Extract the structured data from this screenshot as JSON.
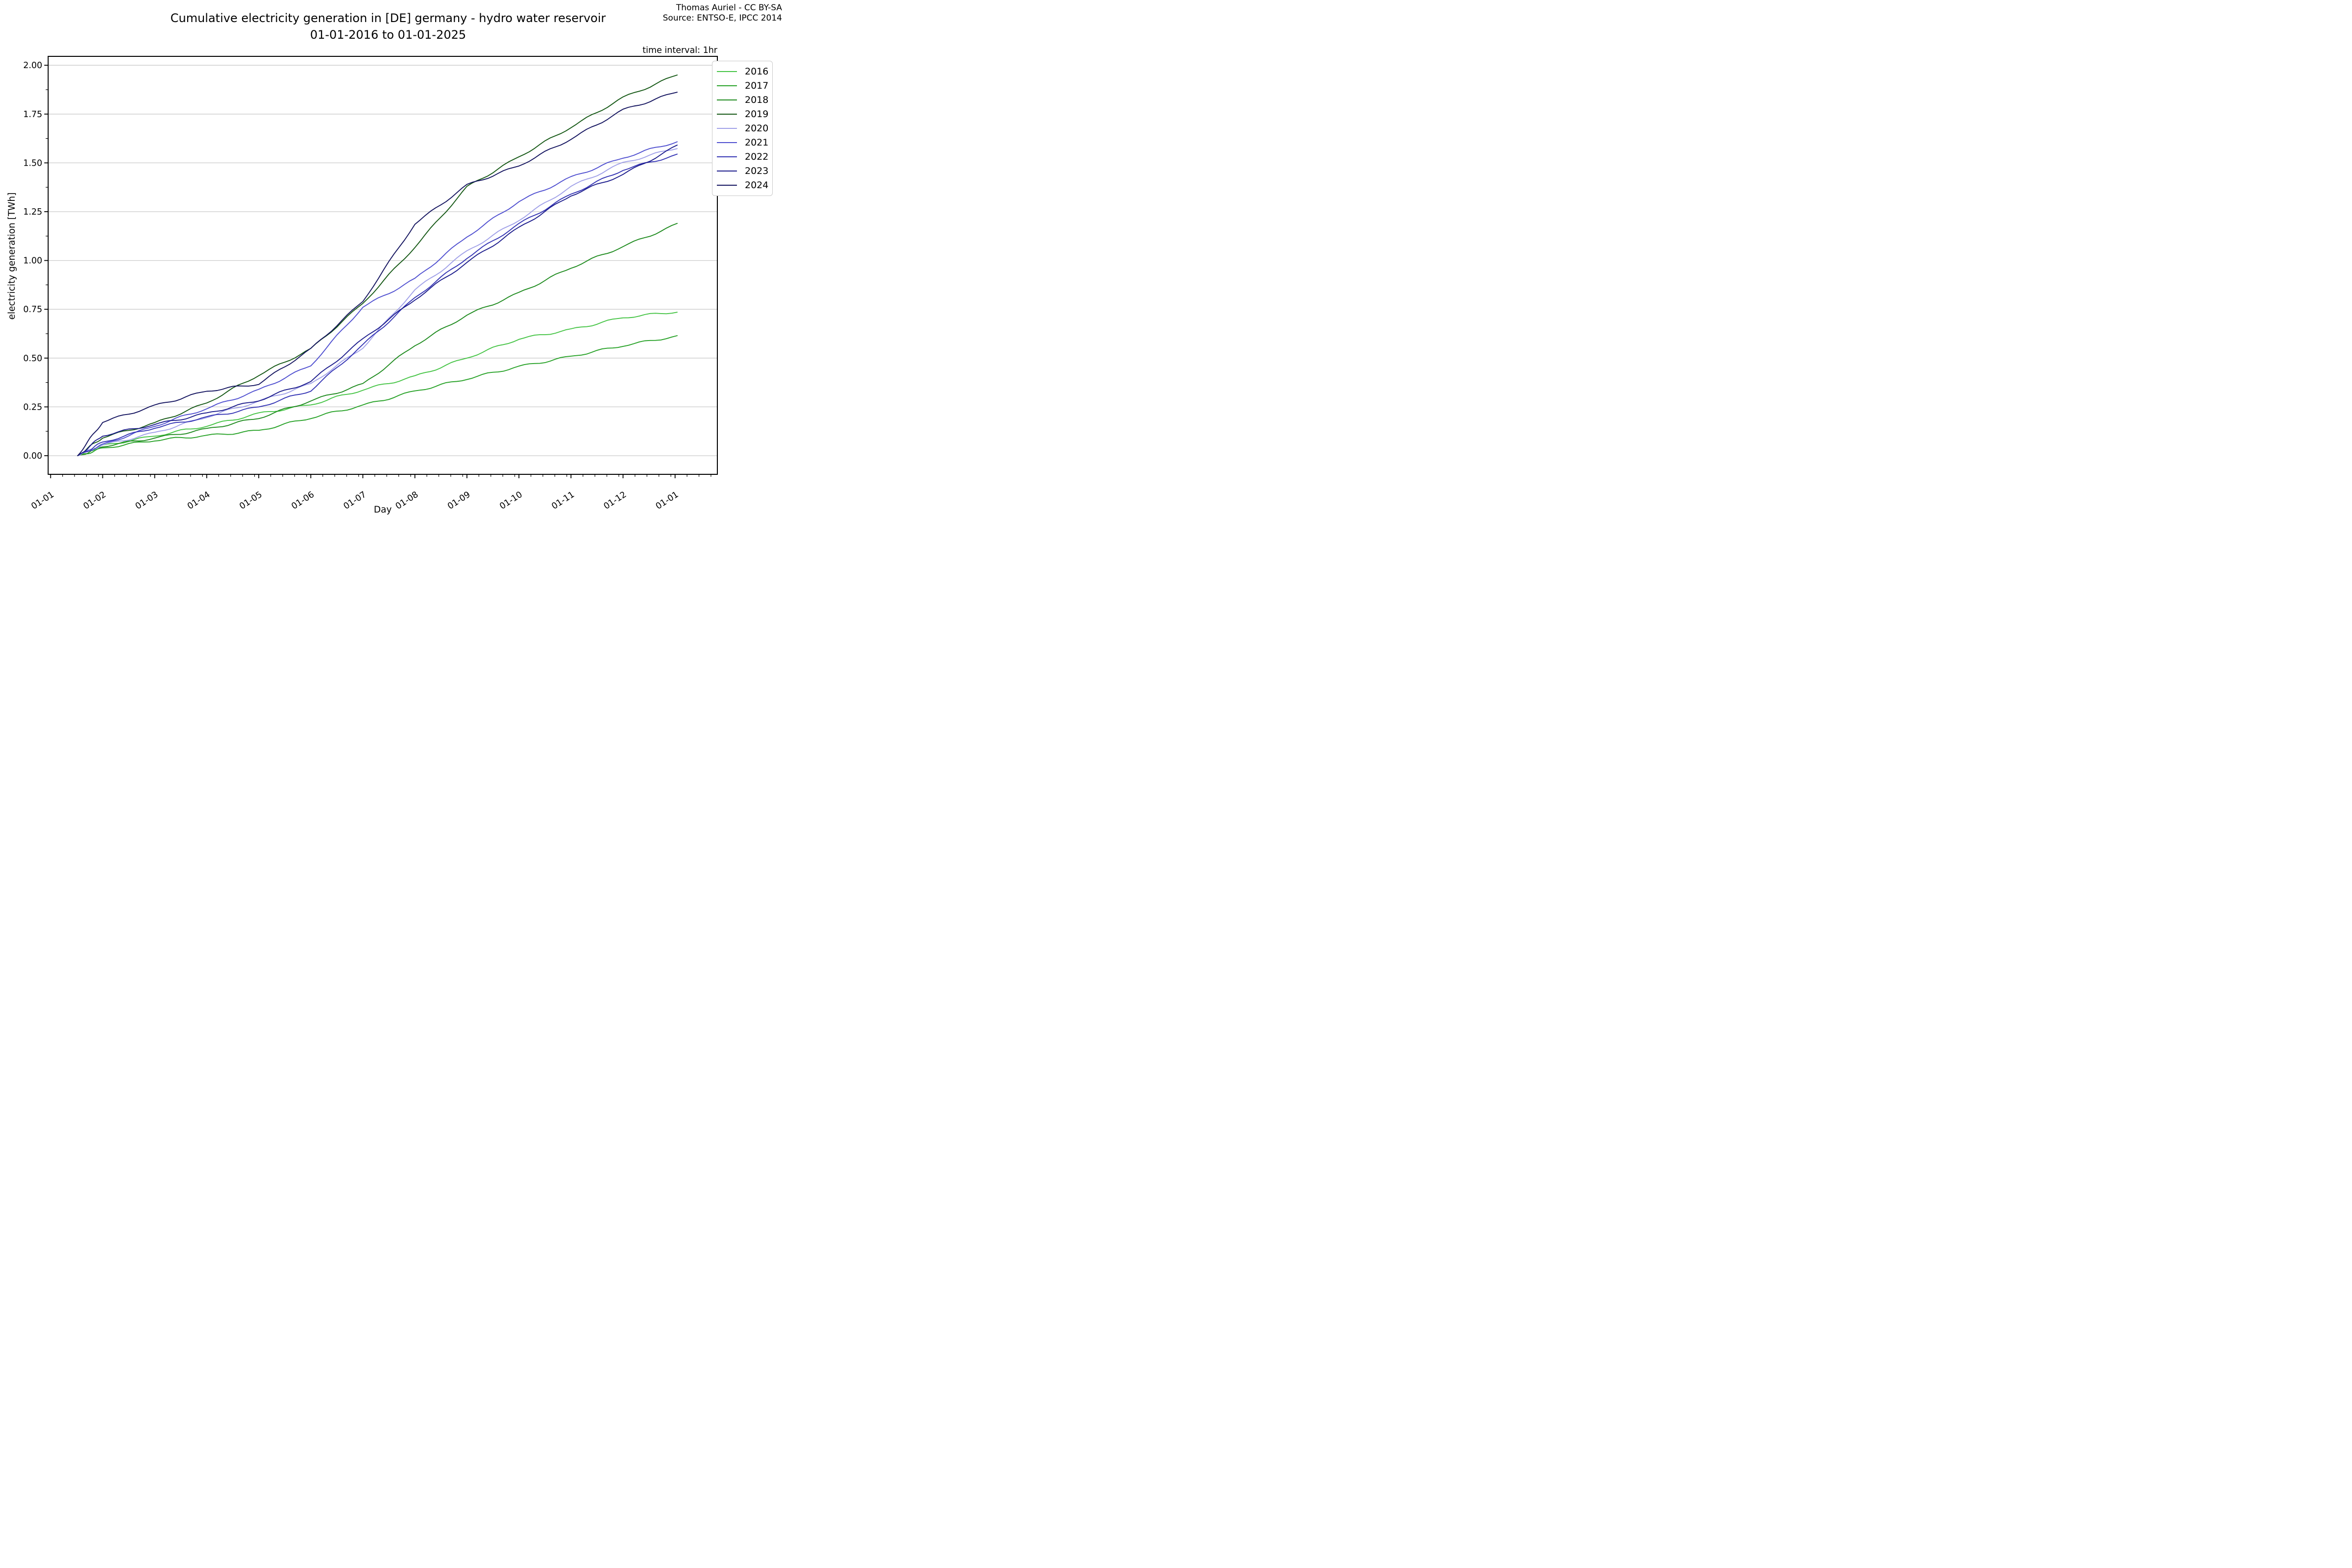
{
  "header": {
    "title_line1": "Cumulative electricity generation in [DE] germany - hydro water reservoir",
    "title_line2": "01-01-2016 to 01-01-2025",
    "credit_line1": "Thomas Auriel - CC BY-SA",
    "credit_line2": "Source: ENTSO-E, IPCC 2014",
    "time_interval_label": "time interval: 1hr"
  },
  "chart_data": {
    "type": "line",
    "title": "Cumulative electricity generation in [DE] germany - hydro water reservoir 01-01-2016 to 01-01-2025",
    "xlabel": "Day",
    "ylabel": "electricity generation [TWh]",
    "x_tick_labels": [
      "01-01",
      "01-02",
      "01-03",
      "01-04",
      "01-05",
      "01-06",
      "01-07",
      "01-08",
      "01-09",
      "01-10",
      "01-11",
      "01-12",
      "01-01"
    ],
    "x_tick_format": "DD-MM (first day of each month over one year)",
    "y_tick_labels": [
      "0.00",
      "0.25",
      "0.50",
      "0.75",
      "1.00",
      "1.25",
      "1.50",
      "1.75",
      "2.00"
    ],
    "ylim": [
      0.0,
      2.0
    ],
    "grid": "horizontal-only",
    "legend_position": "upper right, outside plot",
    "start_day_offset_fraction": 0.52,
    "series": [
      {
        "name": "2016",
        "color": "#46c446",
        "values": [
          0,
          0.055,
          0.1,
          0.15,
          0.22,
          0.26,
          0.335,
          0.41,
          0.5,
          0.596,
          0.65,
          0.706,
          0.735
        ]
      },
      {
        "name": "2017",
        "color": "#28a228",
        "values": [
          0,
          0.04,
          0.075,
          0.105,
          0.13,
          0.19,
          0.26,
          0.332,
          0.39,
          0.459,
          0.51,
          0.56,
          0.615
        ]
      },
      {
        "name": "2018",
        "color": "#1f8b1f",
        "values": [
          0,
          0.045,
          0.09,
          0.14,
          0.19,
          0.28,
          0.37,
          0.563,
          0.72,
          0.837,
          0.96,
          1.071,
          1.19
        ]
      },
      {
        "name": "2019",
        "color": "#155815",
        "values": [
          0,
          0.09,
          0.17,
          0.27,
          0.41,
          0.55,
          0.78,
          1.066,
          1.38,
          1.531,
          1.68,
          1.838,
          1.95
        ]
      },
      {
        "name": "2020",
        "color": "#a0a0e8",
        "values": [
          0,
          0.055,
          0.12,
          0.195,
          0.28,
          0.37,
          0.55,
          0.85,
          1.05,
          1.204,
          1.38,
          1.503,
          1.573
        ]
      },
      {
        "name": "2021",
        "color": "#5050d0",
        "values": [
          0,
          0.06,
          0.15,
          0.24,
          0.34,
          0.46,
          0.76,
          0.909,
          1.12,
          1.301,
          1.43,
          1.524,
          1.608
        ]
      },
      {
        "name": "2022",
        "color": "#3434b4",
        "values": [
          0,
          0.07,
          0.14,
          0.2,
          0.25,
          0.33,
          0.57,
          0.81,
          1.01,
          1.19,
          1.34,
          1.461,
          1.545
        ]
      },
      {
        "name": "2023",
        "color": "#1c1c8c",
        "values": [
          0,
          0.1,
          0.16,
          0.22,
          0.28,
          0.38,
          0.6,
          0.797,
          0.99,
          1.171,
          1.33,
          1.441,
          1.591
        ]
      },
      {
        "name": "2024",
        "color": "#14145f",
        "values": [
          0,
          0.17,
          0.26,
          0.33,
          0.365,
          0.55,
          0.79,
          1.185,
          1.39,
          1.484,
          1.62,
          1.775,
          1.862
        ]
      }
    ]
  }
}
